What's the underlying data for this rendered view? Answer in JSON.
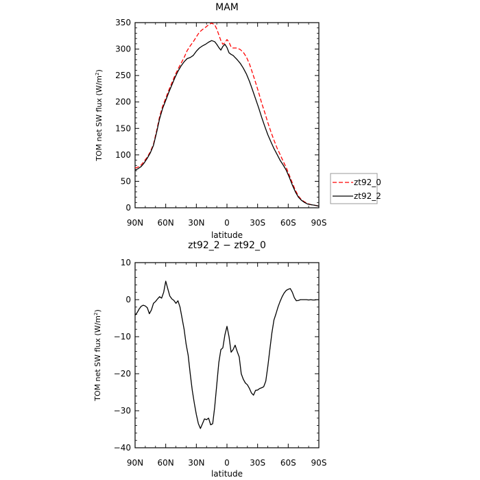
{
  "chart_data": [
    {
      "type": "line",
      "title": "MAM",
      "xlabel": "latitude",
      "ylabel": "TOM net SW flux (W/m²)",
      "ylabel_main": "TOM net SW flux (W/m",
      "ylabel_sup": "2",
      "ylabel_end": ")",
      "xlim": [
        90,
        -90
      ],
      "ylim": [
        0,
        350
      ],
      "xticks": [
        90,
        60,
        30,
        0,
        -30,
        -60,
        -90
      ],
      "xtick_labels": [
        "90N",
        "60N",
        "30N",
        "0",
        "30S",
        "60S",
        "90S"
      ],
      "yticks": [
        0,
        50,
        100,
        150,
        200,
        250,
        300,
        350
      ],
      "ytick_labels": [
        "0",
        "50",
        "100",
        "150",
        "200",
        "250",
        "300",
        "350"
      ],
      "legend_position": "right",
      "series": [
        {
          "name": "zt92_0",
          "color": "#ff0000",
          "dash": "dashed",
          "x": [
            90,
            87,
            84,
            81,
            78,
            75,
            72,
            69,
            66,
            63,
            60,
            57,
            54,
            51,
            48,
            45,
            42,
            39,
            36,
            33,
            30,
            27,
            24,
            21,
            18,
            15,
            12,
            10,
            8,
            6,
            4,
            2,
            0,
            -2,
            -4,
            -6,
            -8,
            -10,
            -13,
            -16,
            -19,
            -22,
            -25,
            -28,
            -31,
            -34,
            -37,
            -40,
            -43,
            -46,
            -49,
            -52,
            -55,
            -58,
            -61,
            -64,
            -67,
            -70,
            -73,
            -76,
            -79,
            -82,
            -85,
            -88,
            -90
          ],
          "y": [
            75,
            77,
            81,
            88,
            96,
            106,
            120,
            145,
            172,
            192,
            207,
            222,
            236,
            250,
            262,
            273,
            284,
            297,
            306,
            314,
            323,
            332,
            337,
            341,
            346,
            349,
            346,
            338,
            327,
            316,
            309,
            312,
            318,
            313,
            304,
            302,
            302,
            302,
            299,
            294,
            285,
            272,
            255,
            237,
            218,
            198,
            180,
            161,
            144,
            128,
            113,
            101,
            88,
            76,
            62,
            47,
            33,
            22,
            15,
            11,
            8,
            6,
            5,
            4,
            3
          ]
        },
        {
          "name": "zt92_2",
          "color": "#000000",
          "dash": "solid",
          "x": [
            90,
            87,
            84,
            81,
            78,
            75,
            72,
            69,
            66,
            63,
            60,
            57,
            54,
            51,
            48,
            45,
            42,
            39,
            36,
            33,
            30,
            27,
            24,
            21,
            18,
            15,
            12,
            10,
            8,
            6,
            4,
            2,
            0,
            -2,
            -4,
            -6,
            -8,
            -10,
            -13,
            -16,
            -19,
            -22,
            -25,
            -28,
            -31,
            -34,
            -37,
            -40,
            -43,
            -46,
            -49,
            -52,
            -55,
            -58,
            -61,
            -64,
            -67,
            -70,
            -73,
            -76,
            -79,
            -82,
            -85,
            -88,
            -90
          ],
          "y": [
            71,
            74,
            78,
            85,
            94,
            104,
            118,
            142,
            168,
            188,
            203,
            218,
            232,
            246,
            258,
            268,
            276,
            282,
            284,
            288,
            296,
            302,
            306,
            309,
            313,
            316,
            314,
            309,
            303,
            298,
            305,
            309,
            303,
            293,
            290,
            288,
            284,
            280,
            273,
            264,
            253,
            239,
            223,
            206,
            189,
            171,
            154,
            138,
            125,
            112,
            101,
            90,
            81,
            71,
            58,
            43,
            30,
            20,
            14,
            10,
            7,
            6,
            5,
            4,
            3
          ]
        }
      ]
    },
    {
      "type": "line",
      "title": "zt92_2 − zt92_0",
      "xlabel": "latitude",
      "ylabel": "TOM net SW flux (W/m²)",
      "ylabel_main": "TOM net SW flux (W/m",
      "ylabel_sup": "2",
      "ylabel_end": ")",
      "xlim": [
        90,
        -90
      ],
      "ylim": [
        -40,
        10
      ],
      "xticks": [
        90,
        60,
        30,
        0,
        -30,
        -60,
        -90
      ],
      "xtick_labels": [
        "90N",
        "60N",
        "30N",
        "0",
        "30S",
        "60S",
        "90S"
      ],
      "yticks": [
        -40,
        -30,
        -20,
        -10,
        0,
        10
      ],
      "ytick_labels": [
        "−40",
        "−30",
        "−20",
        "−10",
        "0",
        "10"
      ],
      "series": [
        {
          "color": "#000000",
          "dash": "solid",
          "x": [
            90,
            88,
            86,
            84,
            82,
            80,
            78,
            76,
            74,
            72,
            70,
            68,
            66,
            64,
            62,
            60,
            58,
            56,
            54,
            52,
            50,
            48,
            46,
            44,
            42,
            40,
            38,
            36,
            34,
            32,
            30,
            28,
            26,
            24,
            22,
            20,
            18,
            16,
            14,
            12,
            10,
            8,
            6,
            4,
            2,
            0,
            -2,
            -4,
            -6,
            -8,
            -10,
            -12,
            -14,
            -16,
            -18,
            -20,
            -22,
            -24,
            -26,
            -28,
            -30,
            -32,
            -34,
            -36,
            -38,
            -40,
            -42,
            -44,
            -46,
            -48,
            -50,
            -52,
            -54,
            -56,
            -58,
            -60,
            -62,
            -64,
            -66,
            -68,
            -70,
            -72,
            -74,
            -76,
            -78,
            -80,
            -82,
            -84,
            -86,
            -88,
            -90
          ],
          "y": [
            -4.2,
            -3.5,
            -2.5,
            -1.8,
            -1.5,
            -1.7,
            -2.2,
            -3.8,
            -2.8,
            -1.0,
            -0.5,
            0.2,
            0.8,
            0.4,
            2.0,
            5.0,
            3.0,
            1.0,
            0.2,
            -0.2,
            -1.0,
            -0.3,
            -2.0,
            -5.0,
            -8.0,
            -12.0,
            -15.0,
            -20.0,
            -24.5,
            -28.0,
            -31.0,
            -33.5,
            -34.8,
            -33.5,
            -32.2,
            -32.4,
            -32.0,
            -33.8,
            -33.5,
            -29.0,
            -23.0,
            -17.0,
            -13.5,
            -13.0,
            -9.5,
            -7.2,
            -10.0,
            -14.2,
            -13.5,
            -12.3,
            -14.0,
            -15.5,
            -20.0,
            -21.5,
            -22.5,
            -23.0,
            -24.0,
            -25.2,
            -25.8,
            -24.5,
            -24.4,
            -24.0,
            -23.8,
            -23.5,
            -22.0,
            -18.0,
            -13.5,
            -9.0,
            -5.5,
            -3.8,
            -2.0,
            -0.5,
            0.8,
            1.8,
            2.5,
            2.8,
            3.0,
            2.0,
            0.5,
            -0.3,
            -0.2,
            0.0,
            0.0,
            0.0,
            0.0,
            -0.1,
            0.0,
            -0.1,
            -0.1,
            0.0,
            0.0
          ]
        }
      ]
    }
  ]
}
